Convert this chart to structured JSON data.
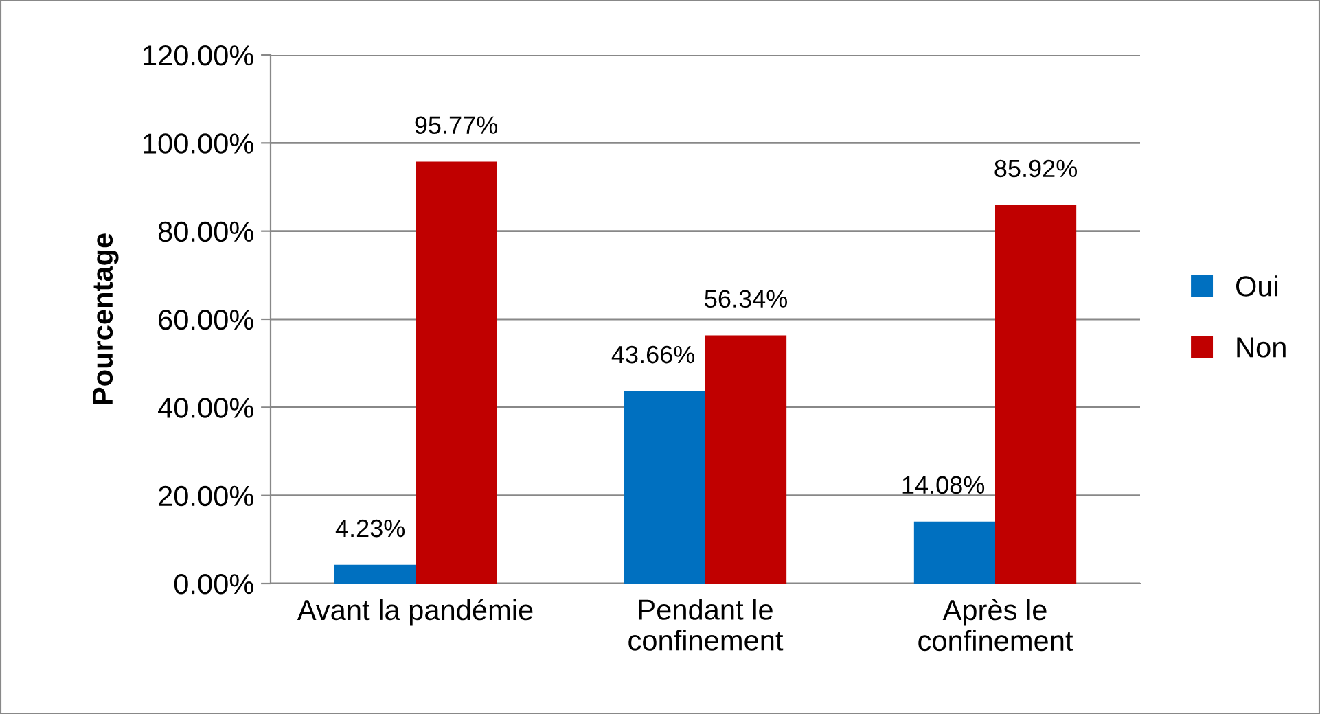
{
  "chart_data": {
    "type": "bar",
    "ylabel": "Pourcentage",
    "categories": [
      "Avant la pandémie",
      "Pendant le\nconfinement",
      "Après le\nconfinement"
    ],
    "series": [
      {
        "name": "Oui",
        "color": "#0070c0",
        "values": [
          4.23,
          43.66,
          14.08
        ],
        "value_labels": [
          "4.23%",
          "43.66%",
          "14.08%"
        ]
      },
      {
        "name": "Non",
        "color": "#c00000",
        "values": [
          95.77,
          56.34,
          85.92
        ],
        "value_labels": [
          "95.77%",
          "56.34%",
          "85.92%"
        ]
      }
    ],
    "ylim": [
      0,
      120
    ],
    "yticks": [
      {
        "value": 0,
        "label": "0.00%"
      },
      {
        "value": 20,
        "label": "20.00%"
      },
      {
        "value": 40,
        "label": "40.00%"
      },
      {
        "value": 60,
        "label": "60.00%"
      },
      {
        "value": 80,
        "label": "80.00%"
      },
      {
        "value": 100,
        "label": "100.00%"
      },
      {
        "value": 120,
        "label": "120.00%"
      }
    ],
    "grid": "y",
    "legend": "right"
  }
}
